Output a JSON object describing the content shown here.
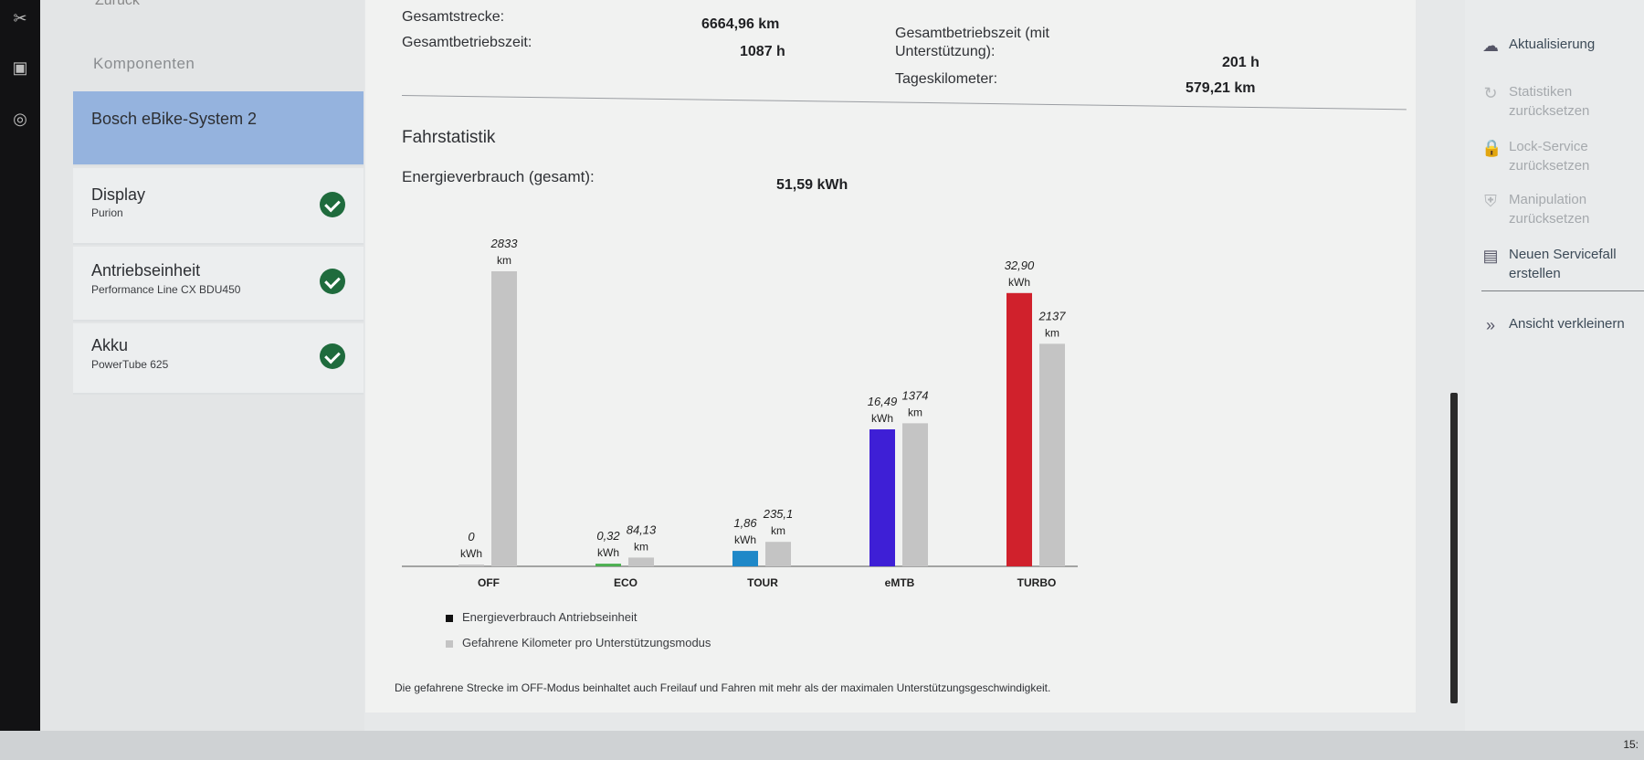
{
  "sidebar": {
    "back_label": "Zurück",
    "components_heading": "Komponenten",
    "items": [
      {
        "title": "Bosch eBike-System 2",
        "subtitle": ""
      },
      {
        "title": "Display",
        "subtitle": "Purion"
      },
      {
        "title": "Antriebseinheit",
        "subtitle": "Performance Line CX BDU450"
      },
      {
        "title": "Akku",
        "subtitle": "PowerTube 625"
      }
    ]
  },
  "stats": {
    "total_distance_label": "Gesamtstrecke:",
    "total_distance_value": "6664,96 km",
    "total_runtime_label": "Gesamtbetriebszeit:",
    "total_runtime_value": "1087 h",
    "assisted_runtime_label_1": "Gesamtbetriebszeit (mit",
    "assisted_runtime_label_2": "Unterstützung):",
    "assisted_runtime_value": "201 h",
    "daily_km_label": "Tageskilometer:",
    "daily_km_value": "579,21 km",
    "section_title": "Fahrstatistik",
    "energy_label": "Energieverbrauch (gesamt):",
    "energy_value": "51,59 kWh"
  },
  "chart_data": {
    "type": "bar",
    "categories": [
      "OFF",
      "ECO",
      "TOUR",
      "eMTB",
      "TURBO"
    ],
    "series": [
      {
        "name": "Energieverbrauch Antriebseinheit",
        "unit": "kWh",
        "values": [
          0,
          0.32,
          1.86,
          16.49,
          32.9
        ],
        "labels": [
          "0",
          "0,32",
          "1,86",
          "16,49",
          "32,90"
        ]
      },
      {
        "name": "Gefahrene Kilometer pro Unterstützungsmodus",
        "unit": "km",
        "values": [
          2833,
          84.13,
          235.1,
          1374,
          2137
        ],
        "labels": [
          "2833",
          "84,13",
          "235,1",
          "1374",
          "2137"
        ]
      }
    ],
    "bar_colors": {
      "OFF": "#c4c4c4",
      "ECO": "#4caf50",
      "TOUR": "#1e88c8",
      "eMTB": "#3e1fd6",
      "TURBO": "#d0212c"
    },
    "km_color": "#c4c4c4",
    "legend": [
      {
        "label": "Energieverbrauch Antriebseinheit",
        "color": "#111111"
      },
      {
        "label": "Gefahrene Kilometer pro Unterstützungsmodus",
        "color": "#c4c4c4"
      }
    ]
  },
  "footnote": "Die gefahrene Strecke im OFF-Modus beinhaltet auch Freilauf und Fahren mit mehr als der maximalen Unterstützungsgeschwindigkeit.",
  "actions": [
    {
      "label": "Aktualisierung",
      "icon": "cloud-refresh-icon",
      "enabled": true
    },
    {
      "label": "Statistiken zurücksetzen",
      "icon": "reset-icon",
      "enabled": false
    },
    {
      "label": "Lock-Service zurücksetzen",
      "icon": "lock-icon",
      "enabled": false
    },
    {
      "label": "Manipulation zurücksetzen",
      "icon": "shield-icon",
      "enabled": false
    },
    {
      "label": "Neuen Servicefall erstellen",
      "icon": "document-icon",
      "enabled": true
    },
    {
      "label": "Ansicht verkleinern",
      "icon": "double-chevron-right-icon",
      "enabled": true
    }
  ],
  "taskbar": {
    "clock": "15:"
  }
}
